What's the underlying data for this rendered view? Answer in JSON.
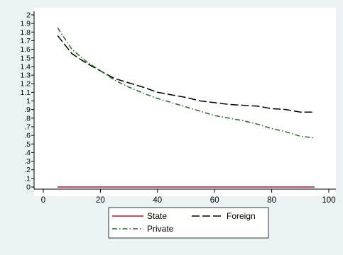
{
  "chart_data": {
    "type": "line",
    "title": "",
    "xlabel": "",
    "ylabel": "",
    "xlim": [
      0,
      100
    ],
    "ylim": [
      0,
      2
    ],
    "x_ticks": [
      "0",
      "20",
      "40",
      "60",
      "80",
      "100"
    ],
    "y_ticks": [
      "0",
      ".1",
      ".2",
      ".3",
      ".4",
      ".5",
      ".6",
      ".7",
      ".8",
      ".9",
      "1",
      "1.1",
      "1.2",
      "1.3",
      "1.4",
      "1.5",
      "1.6",
      "1.7",
      "1.8",
      "1.9",
      "2"
    ],
    "grid": false,
    "legend_position": "bottom",
    "x": [
      5,
      10,
      15,
      20,
      25,
      30,
      35,
      40,
      45,
      50,
      55,
      60,
      65,
      70,
      75,
      80,
      85,
      90,
      95
    ],
    "series": [
      {
        "name": "State",
        "color": "#b3122e",
        "dash": "solid",
        "values": [
          0,
          0,
          0,
          0,
          0,
          0,
          0,
          0,
          0,
          0,
          0,
          0,
          0,
          0,
          0,
          0,
          0,
          0,
          0
        ]
      },
      {
        "name": "Foreign",
        "color": "#000000",
        "dash": "longdash",
        "values": [
          1.76,
          1.55,
          1.44,
          1.35,
          1.26,
          1.21,
          1.16,
          1.1,
          1.07,
          1.04,
          1.0,
          0.98,
          0.96,
          0.95,
          0.94,
          0.91,
          0.9,
          0.87,
          0.87
        ]
      },
      {
        "name": "Private",
        "color": "#1a6e1a",
        "dash": "dashdot",
        "values": [
          1.85,
          1.6,
          1.46,
          1.35,
          1.24,
          1.16,
          1.09,
          1.03,
          0.98,
          0.93,
          0.88,
          0.83,
          0.8,
          0.77,
          0.73,
          0.68,
          0.64,
          0.59,
          0.57
        ]
      }
    ]
  }
}
